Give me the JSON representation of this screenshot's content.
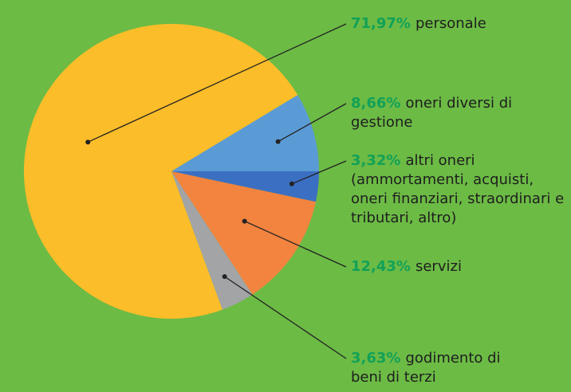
{
  "chart_data": {
    "type": "pie",
    "categories": [
      "personale",
      "oneri diversi di gestione",
      "altri oneri (ammortamenti, acquisti, oneri finanziari, straordinari e tributari, altro)",
      "servizi",
      "godimento di beni di terzi"
    ],
    "values": [
      71.97,
      8.66,
      3.32,
      12.43,
      3.63
    ],
    "value_labels": [
      "71,97%",
      "8,66%",
      "3,32%",
      "12,43%",
      "3,63%"
    ],
    "colors": [
      "#fbbd29",
      "#5b9bd5",
      "#3b6fc2",
      "#f2843f",
      "#a3a4a6"
    ]
  }
}
